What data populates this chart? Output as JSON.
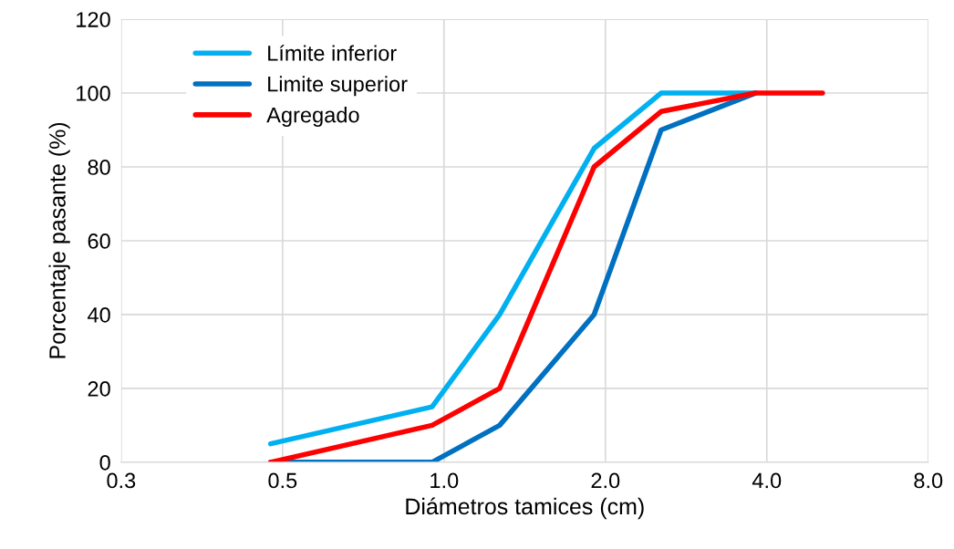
{
  "chart_data": {
    "type": "line",
    "xlabel": "Diámetros tamices (cm)",
    "ylabel": "Porcentaje pasante (%)",
    "log": "x",
    "xlim": [
      0.25,
      8
    ],
    "xticks": [
      {
        "value": 0.25,
        "label": "0.3"
      },
      {
        "value": 0.5,
        "label": "0.5"
      },
      {
        "value": 1,
        "label": "1.0"
      },
      {
        "value": 2,
        "label": "2.0"
      },
      {
        "value": 4,
        "label": "4.0"
      },
      {
        "value": 8,
        "label": "8.0"
      }
    ],
    "ylim": [
      0,
      120
    ],
    "yticks": [
      0,
      20,
      40,
      60,
      80,
      100,
      120
    ],
    "grid": true,
    "legend": "top left",
    "marker": "none",
    "line_style": "solid",
    "series": [
      {
        "name": "Límite inferior",
        "color": "#00b0f0",
        "x": [
          0.475,
          0.95,
          1.27,
          1.905,
          2.54,
          3.81
        ],
        "values": [
          5,
          15,
          40,
          85,
          100,
          100
        ]
      },
      {
        "name": "Limite superior",
        "color": "#0070c0",
        "x": [
          0.475,
          0.95,
          1.27,
          1.905,
          2.54,
          3.81
        ],
        "values": [
          0,
          0,
          10,
          40,
          90,
          100
        ]
      },
      {
        "name": "Agregado",
        "color": "#ff0000",
        "x": [
          0.475,
          0.95,
          1.27,
          1.905,
          2.54,
          3.81,
          5.08
        ],
        "values": [
          0,
          10,
          20,
          80,
          95,
          100,
          100
        ]
      }
    ]
  }
}
